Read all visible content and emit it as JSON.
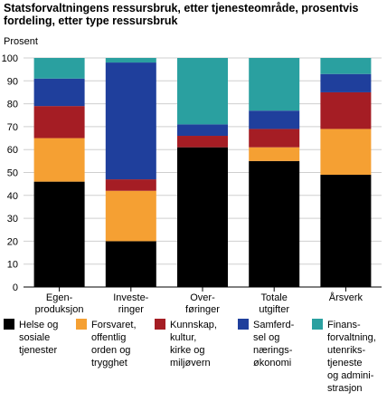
{
  "chart_data": {
    "type": "stacked-bar",
    "title": "Statsforvaltningens ressursbruk, etter tjenesteområde, prosentvis\nfordeling, etter type ressursbruk",
    "ylabel": "Prosent",
    "categories": [
      "Egen-\nproduksjon",
      "Investe-\nringer",
      "Over-\nføringer",
      "Totale\nutgifter",
      "Årsverk"
    ],
    "series": [
      {
        "name": "Helse og\nsosiale\ntjenester",
        "color": "#000000",
        "values": [
          46,
          20,
          61,
          55,
          49
        ]
      },
      {
        "name": "Forsvaret,\noffentlig\norden og\ntrygghet",
        "color": "#f5a033",
        "values": [
          19,
          22,
          0,
          6,
          20
        ]
      },
      {
        "name": "Kunnskap,\nkultur,\nkirke og\nmiljøvern",
        "color": "#a51d24",
        "values": [
          14,
          5,
          5,
          8,
          16
        ]
      },
      {
        "name": "Samferd-\nsel og\nnærings-\nøkonomi",
        "color": "#1f3f9c",
        "values": [
          12,
          51,
          5,
          8,
          8
        ]
      },
      {
        "name": "Finans-\nforvaltning,\nutenriks-\ntjeneste\nog admini-\nstrasjon",
        "color": "#2aa0a0",
        "values": [
          9,
          2,
          29,
          23,
          7
        ]
      }
    ],
    "ylim": [
      0,
      100
    ],
    "yticks": [
      0,
      10,
      20,
      30,
      40,
      50,
      60,
      70,
      80,
      90,
      100
    ],
    "grid": true
  }
}
